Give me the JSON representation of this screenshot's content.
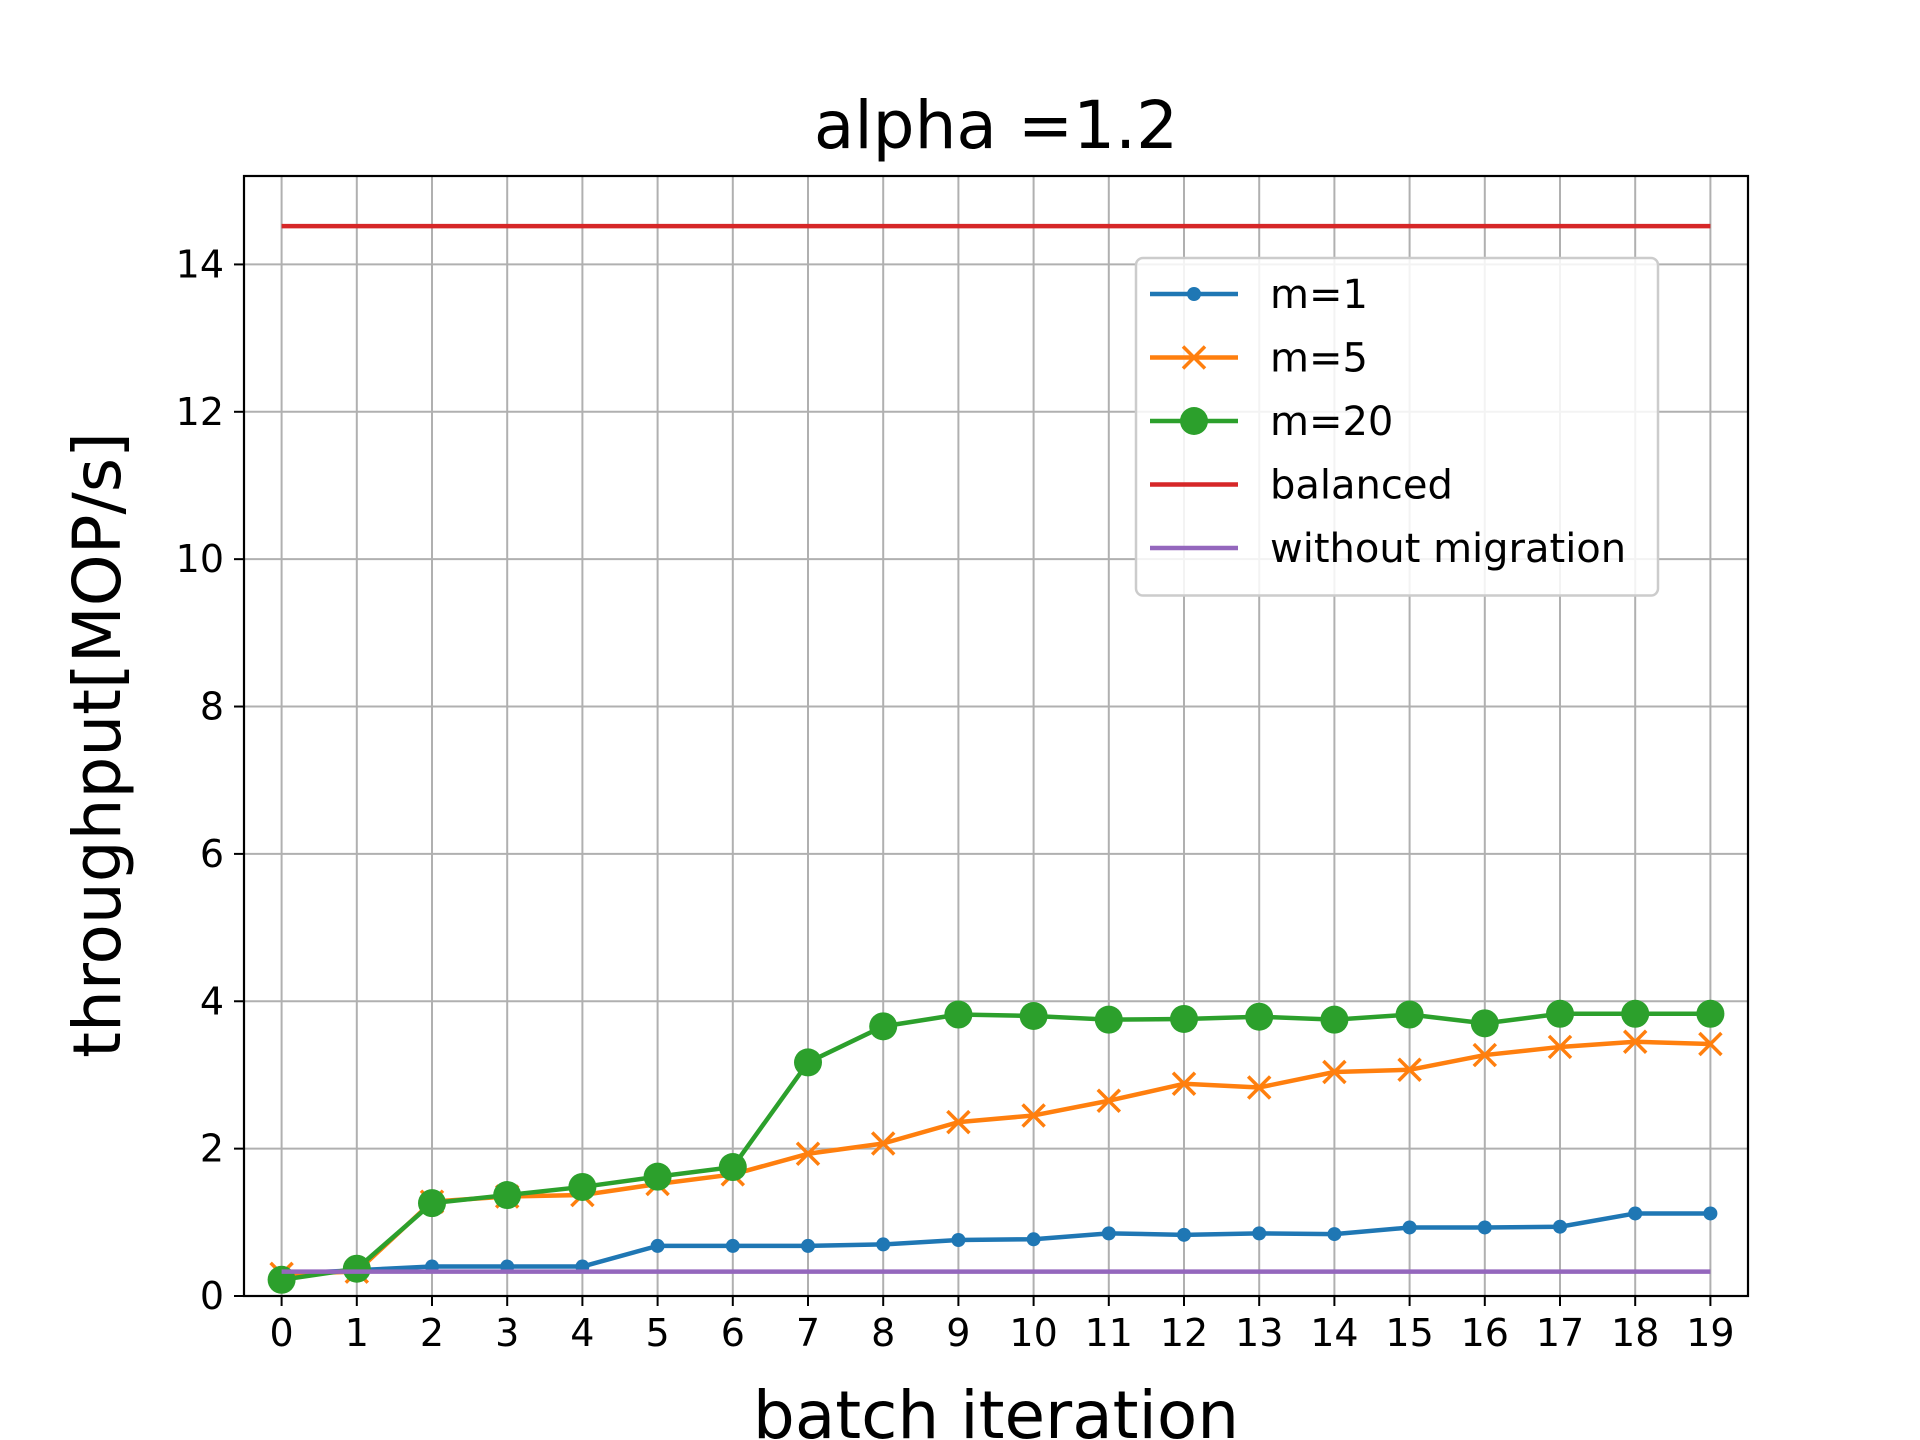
{
  "chart_data": {
    "type": "line",
    "title": "alpha =1.2",
    "xlabel": "batch iteration",
    "ylabel": "throughput[MOP/s]",
    "x": [
      0,
      1,
      2,
      3,
      4,
      5,
      6,
      7,
      8,
      9,
      10,
      11,
      12,
      13,
      14,
      15,
      16,
      17,
      18,
      19
    ],
    "xlim": [
      -0.5,
      19.5
    ],
    "ylim": [
      0,
      15.2
    ],
    "yticks": [
      0,
      2,
      4,
      6,
      8,
      10,
      12,
      14
    ],
    "grid": true,
    "legend_position": "upper-right",
    "series": [
      {
        "name": "m=1",
        "color": "#1f77b4",
        "marker": "dot",
        "values": [
          0.3,
          0.35,
          0.4,
          0.4,
          0.4,
          0.68,
          0.68,
          0.68,
          0.7,
          0.76,
          0.77,
          0.85,
          0.83,
          0.85,
          0.84,
          0.93,
          0.93,
          0.94,
          1.12,
          1.12
        ]
      },
      {
        "name": "m=5",
        "color": "#ff7f0e",
        "marker": "x",
        "values": [
          0.3,
          0.33,
          1.28,
          1.35,
          1.37,
          1.52,
          1.65,
          1.93,
          2.07,
          2.36,
          2.45,
          2.65,
          2.88,
          2.83,
          3.04,
          3.07,
          3.27,
          3.38,
          3.45,
          3.42
        ]
      },
      {
        "name": "m=20",
        "color": "#2ca02c",
        "marker": "circle",
        "values": [
          0.22,
          0.37,
          1.26,
          1.37,
          1.48,
          1.62,
          1.75,
          3.17,
          3.66,
          3.82,
          3.8,
          3.75,
          3.76,
          3.79,
          3.75,
          3.82,
          3.7,
          3.83,
          3.83,
          3.83
        ]
      },
      {
        "name": "balanced",
        "color": "#d62728",
        "marker": "none",
        "values": [
          14.52,
          14.52,
          14.52,
          14.52,
          14.52,
          14.52,
          14.52,
          14.52,
          14.52,
          14.52,
          14.52,
          14.52,
          14.52,
          14.52,
          14.52,
          14.52,
          14.52,
          14.52,
          14.52,
          14.52
        ]
      },
      {
        "name": "without migration",
        "color": "#9467bd",
        "marker": "none",
        "values": [
          0.33,
          0.33,
          0.33,
          0.33,
          0.33,
          0.33,
          0.33,
          0.33,
          0.33,
          0.33,
          0.33,
          0.33,
          0.33,
          0.33,
          0.33,
          0.33,
          0.33,
          0.33,
          0.33,
          0.33
        ]
      }
    ]
  }
}
